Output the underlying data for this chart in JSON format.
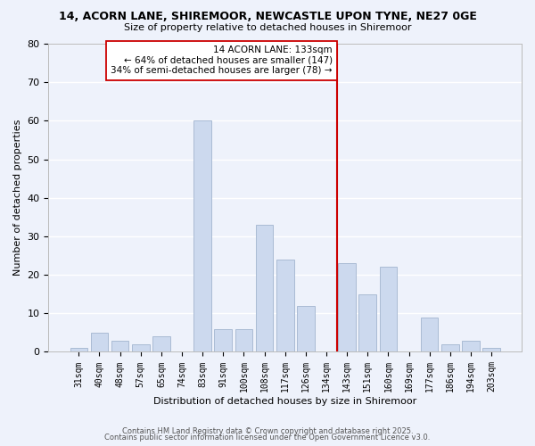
{
  "title1": "14, ACORN LANE, SHIREMOOR, NEWCASTLE UPON TYNE, NE27 0GE",
  "title2": "Size of property relative to detached houses in Shiremoor",
  "xlabel": "Distribution of detached houses by size in Shiremoor",
  "ylabel": "Number of detached properties",
  "categories": [
    "31sqm",
    "40sqm",
    "48sqm",
    "57sqm",
    "65sqm",
    "74sqm",
    "83sqm",
    "91sqm",
    "100sqm",
    "108sqm",
    "117sqm",
    "126sqm",
    "134sqm",
    "143sqm",
    "151sqm",
    "160sqm",
    "169sqm",
    "177sqm",
    "186sqm",
    "194sqm",
    "203sqm"
  ],
  "values": [
    1,
    5,
    3,
    2,
    4,
    0,
    60,
    6,
    6,
    33,
    24,
    12,
    0,
    23,
    15,
    22,
    0,
    9,
    2,
    3,
    1
  ],
  "bar_color": "#ccd9ee",
  "bar_edge_color": "#aabbd4",
  "marker_line_color": "#cc0000",
  "annotation_line1": "14 ACORN LANE: 133sqm",
  "annotation_line2": "← 64% of detached houses are smaller (147)",
  "annotation_line3": "34% of semi-detached houses are larger (78) →",
  "background_color": "#eef2fb",
  "grid_color": "#ffffff",
  "footer1": "Contains HM Land Registry data © Crown copyright and database right 2025.",
  "footer2": "Contains public sector information licensed under the Open Government Licence v3.0.",
  "ylim": [
    0,
    80
  ],
  "yticks": [
    0,
    10,
    20,
    30,
    40,
    50,
    60,
    70,
    80
  ]
}
